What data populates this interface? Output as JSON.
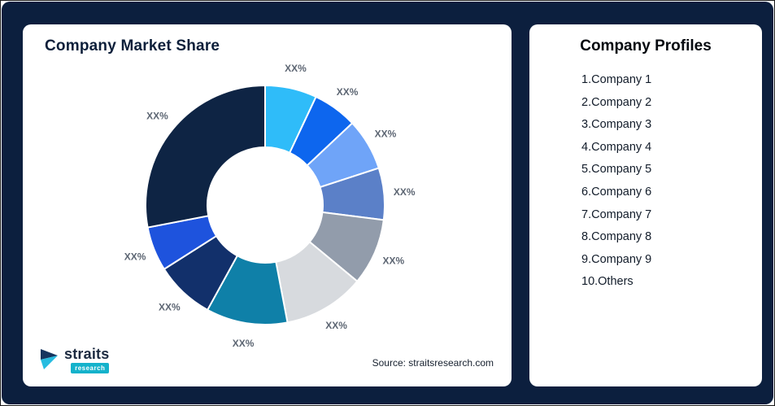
{
  "page": {
    "background": "#0c1f3e",
    "card_color": "#ffffff"
  },
  "chart_card": {
    "title": "Company Market Share",
    "source": "Source: straitsresearch.com"
  },
  "logo": {
    "word": "straits",
    "sub": "research",
    "chip_color": "#14b2cb"
  },
  "profiles_card": {
    "title": "Company Profiles",
    "items": [
      "1.Company 1",
      "2.Company 2",
      "3.Company 3",
      "4.Company 4",
      "5.Company 5",
      "6.Company 6",
      "7.Company 7",
      "8.Company 8",
      "9.Company 9",
      "10.Others"
    ]
  },
  "chart_data": {
    "type": "pie",
    "subtype": "donut",
    "title": "Company Market Share",
    "inner_radius_ratio": 0.48,
    "legend_position": "none",
    "slice_label_text": "XX%",
    "values_estimated_from_arc_angles": true,
    "series": [
      {
        "name": "Company 1",
        "value": 7,
        "color": "#2fbcf9",
        "label": "XX%"
      },
      {
        "name": "Company 2",
        "value": 6,
        "color": "#0d66ee",
        "label": "XX%"
      },
      {
        "name": "Company 3",
        "value": 7,
        "color": "#6fa4f8",
        "label": "XX%"
      },
      {
        "name": "Company 4",
        "value": 7,
        "color": "#5b80c8",
        "label": "XX%"
      },
      {
        "name": "Company 5",
        "value": 9,
        "color": "#929cab",
        "label": "XX%"
      },
      {
        "name": "Company 6",
        "value": 11,
        "color": "#d7dade",
        "label": "XX%"
      },
      {
        "name": "Company 7",
        "value": 11,
        "color": "#0f80a8",
        "label": "XX%"
      },
      {
        "name": "Company 8",
        "value": 8,
        "color": "#12306b",
        "label": "XX%"
      },
      {
        "name": "Company 9",
        "value": 6,
        "color": "#1e53dd",
        "label": "XX%"
      },
      {
        "name": "Others",
        "value": 28,
        "color": "#0e2444",
        "label": "XX%"
      }
    ]
  }
}
